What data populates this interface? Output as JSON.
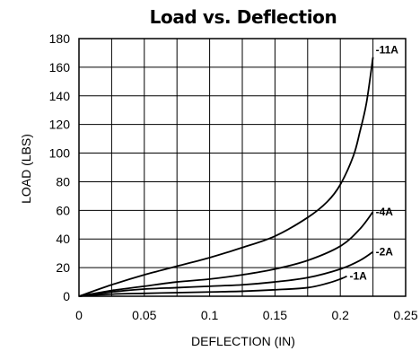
{
  "chart_data": {
    "type": "line",
    "title": "Load vs. Deflection",
    "xlabel": "DEFLECTION (IN)",
    "ylabel": "LOAD (LBS)",
    "xlim": [
      0,
      0.25
    ],
    "ylim": [
      0,
      180
    ],
    "x_ticks": [
      "0",
      "0.05",
      "0.1",
      "0.15",
      "0.2",
      "0.25"
    ],
    "y_ticks": [
      "0",
      "20",
      "40",
      "60",
      "80",
      "100",
      "120",
      "140",
      "160",
      "180"
    ],
    "grid": true,
    "series": [
      {
        "name": "-11A",
        "x": [
          0,
          0.025,
          0.05,
          0.075,
          0.1,
          0.125,
          0.15,
          0.175,
          0.19,
          0.2,
          0.21,
          0.215,
          0.22,
          0.225
        ],
        "y": [
          0,
          8,
          15,
          21,
          27,
          34,
          42,
          55,
          66,
          78,
          98,
          115,
          135,
          167
        ]
      },
      {
        "name": "-4A",
        "x": [
          0,
          0.025,
          0.05,
          0.075,
          0.1,
          0.125,
          0.15,
          0.175,
          0.2,
          0.215,
          0.225
        ],
        "y": [
          0,
          4,
          7,
          10,
          12,
          15,
          19,
          25,
          35,
          47,
          59
        ]
      },
      {
        "name": "-2A",
        "x": [
          0,
          0.025,
          0.05,
          0.075,
          0.1,
          0.125,
          0.15,
          0.175,
          0.2,
          0.215,
          0.225
        ],
        "y": [
          0,
          3,
          5,
          6,
          7,
          8,
          10,
          13,
          19,
          25,
          31
        ]
      },
      {
        "name": "-1A",
        "x": [
          0,
          0.025,
          0.05,
          0.075,
          0.1,
          0.125,
          0.15,
          0.175,
          0.19,
          0.2,
          0.205
        ],
        "y": [
          0,
          1.5,
          2,
          2.5,
          3,
          3.5,
          4.5,
          6,
          9,
          12,
          14
        ]
      }
    ]
  }
}
